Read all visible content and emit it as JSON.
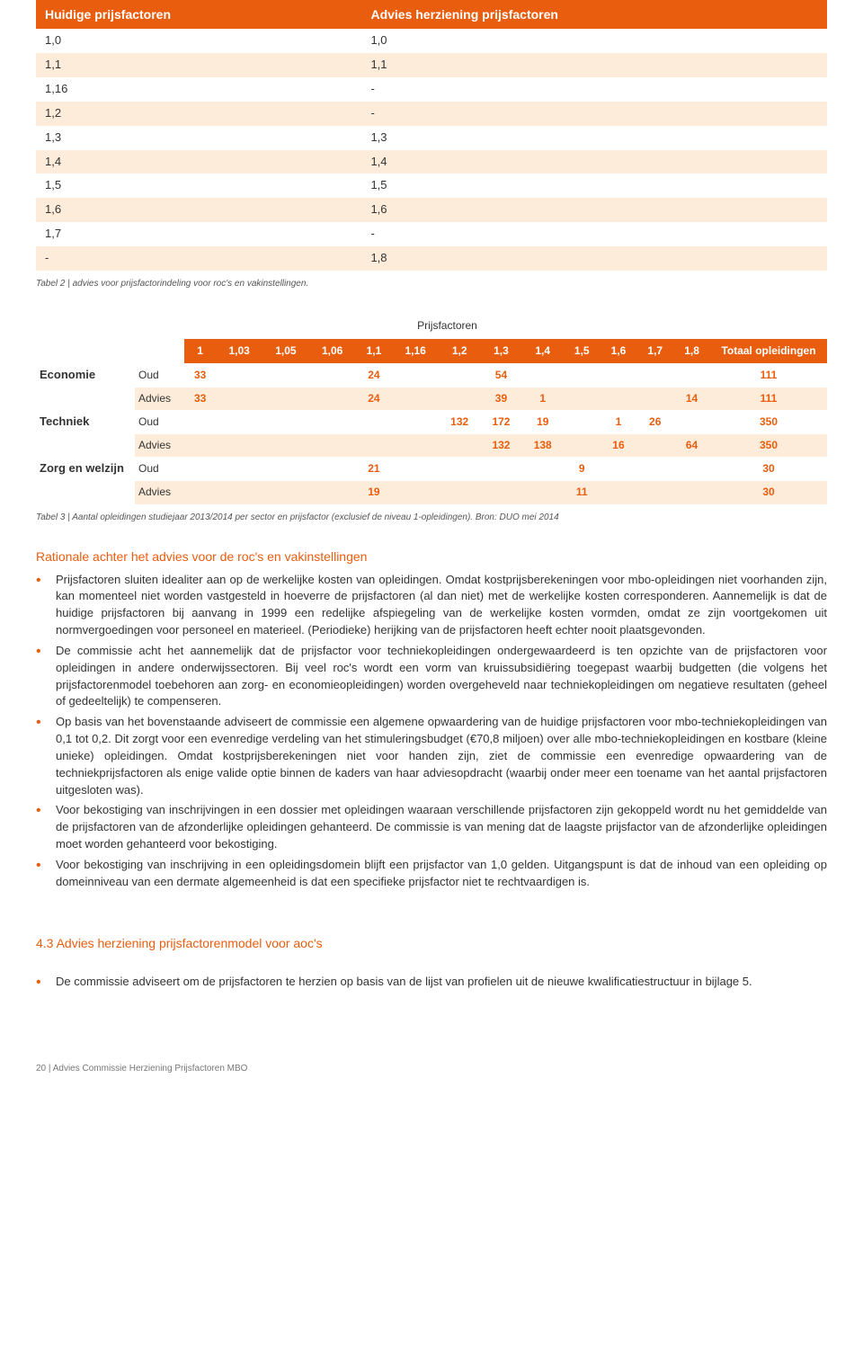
{
  "table2": {
    "header_left": "Huidige prijsfactoren",
    "header_right": "Advies herziening prijsfactoren",
    "rows": [
      {
        "l": "1,0",
        "r": "1,0",
        "tint": false
      },
      {
        "l": "1,1",
        "r": "1,1",
        "tint": true
      },
      {
        "l": "1,16",
        "r": "-",
        "tint": false
      },
      {
        "l": "1,2",
        "r": "-",
        "tint": true
      },
      {
        "l": "1,3",
        "r": "1,3",
        "tint": false
      },
      {
        "l": "1,4",
        "r": "1,4",
        "tint": true
      },
      {
        "l": "1,5",
        "r": "1,5",
        "tint": false
      },
      {
        "l": "1,6",
        "r": "1,6",
        "tint": true
      },
      {
        "l": "1,7",
        "r": "-",
        "tint": false
      },
      {
        "l": "-",
        "r": "1,8",
        "tint": true
      }
    ],
    "caption": "Tabel 2 | advies voor prijsfactorindeling voor roc's en vakinstellingen."
  },
  "table3": {
    "topheader": "Prijsfactoren",
    "cols": [
      "1",
      "1,03",
      "1,05",
      "1,06",
      "1,1",
      "1,16",
      "1,2",
      "1,3",
      "1,4",
      "1,5",
      "1,6",
      "1,7",
      "1,8"
    ],
    "total_label": "Totaal opleidingen",
    "groups": [
      {
        "name": "Economie",
        "oud": [
          "33",
          "",
          "",
          "",
          "24",
          "",
          "",
          "54",
          "",
          "",
          "",
          "",
          ""
        ],
        "oud_total": "111",
        "advies": [
          "33",
          "",
          "",
          "",
          "24",
          "",
          "",
          "39",
          "1",
          "",
          "",
          "",
          "14"
        ],
        "advies_total": "111"
      },
      {
        "name": "Techniek",
        "oud": [
          "",
          "",
          "",
          "",
          "",
          "",
          "132",
          "172",
          "19",
          "",
          "1",
          "26",
          ""
        ],
        "oud_total": "350",
        "advies": [
          "",
          "",
          "",
          "",
          "",
          "",
          "",
          "132",
          "138",
          "",
          "16",
          "",
          "64"
        ],
        "advies_total": "350"
      },
      {
        "name": "Zorg en welzijn",
        "oud": [
          "",
          "",
          "",
          "",
          "21",
          "",
          "",
          "",
          "",
          "9",
          "",
          "",
          ""
        ],
        "oud_total": "30",
        "advies": [
          "",
          "",
          "",
          "",
          "19",
          "",
          "",
          "",
          "",
          "11",
          "",
          "",
          ""
        ],
        "advies_total": "30"
      }
    ],
    "oud_label": "Oud",
    "advies_label": "Advies",
    "caption": "Tabel 3 | Aantal opleidingen studiejaar 2013/2014 per sector en prijsfactor (exclusief de niveau 1-opleidingen). Bron: DUO mei 2014"
  },
  "rationale": {
    "title": "Rationale achter het advies voor de roc's en vakinstellingen",
    "bullets": [
      "Prijsfactoren sluiten idealiter aan op de werkelijke kosten van opleidingen. Omdat kostprijsberekeningen voor mbo-opleidingen niet voorhanden zijn, kan momenteel niet worden vastgesteld in hoeverre de prijsfactoren (al dan niet) met de werkelijke kosten corresponderen. Aannemelijk is dat de huidige prijsfactoren bij aanvang in 1999 een redelijke afspiegeling van de werkelijke kosten vormden, omdat ze zijn voortgekomen uit normvergoedingen voor personeel en materieel. (Periodieke) herijking van de prijsfactoren heeft echter nooit plaatsgevonden.",
      "De commissie acht het aannemelijk dat de prijsfactor voor techniekopleidingen ondergewaardeerd is ten opzichte van de prijsfactoren voor opleidingen in andere onderwijssectoren. Bij veel roc's wordt een vorm van kruissubsidiëring toegepast waarbij budgetten (die volgens het prijsfactorenmodel toebehoren aan zorg- en economieopleidingen) worden overgeheveld naar techniekopleidingen om negatieve resultaten (geheel of gedeeltelijk) te compenseren.",
      "Op basis van het bovenstaande adviseert de commissie een algemene opwaardering van de huidige prijsfactoren voor mbo-techniekopleidingen van 0,1 tot 0,2. Dit zorgt voor een evenredige verdeling van het stimuleringsbudget (€70,8 miljoen) over alle mbo-techniekopleidingen en kostbare (kleine unieke) opleidingen. Omdat kostprijsberekeningen niet voor handen zijn, ziet de commissie een evenredige opwaardering van de techniekprijsfactoren als enige valide optie binnen de kaders van haar adviesopdracht (waarbij onder meer een toename van het aantal prijsfactoren uitgesloten was).",
      "Voor bekostiging van inschrijvingen in een dossier met opleidingen waaraan verschillende prijsfactoren zijn gekoppeld wordt nu het gemiddelde van de prijsfactoren van de afzonderlijke opleidingen gehanteerd. De commissie is van mening dat de laagste prijsfactor van de afzonderlijke opleidingen moet worden gehanteerd voor bekostiging.",
      "Voor bekostiging van inschrijving in een opleidingsdomein blijft een prijsfactor van 1,0 gelden. Uitgangspunt is dat de inhoud van een opleiding op domeinniveau van een dermate algemeenheid is dat een specifieke prijsfactor niet te rechtvaardigen is."
    ]
  },
  "section43": {
    "title": "4.3  Advies herziening prijsfactorenmodel voor aoc's",
    "bullet": "De commissie adviseert om de prijsfactoren te herzien op basis van de lijst van profielen uit de nieuwe kwalificatiestructuur in bijlage 5."
  },
  "footer": "20  |  Advies Commissie Herziening Prijsfactoren MBO"
}
